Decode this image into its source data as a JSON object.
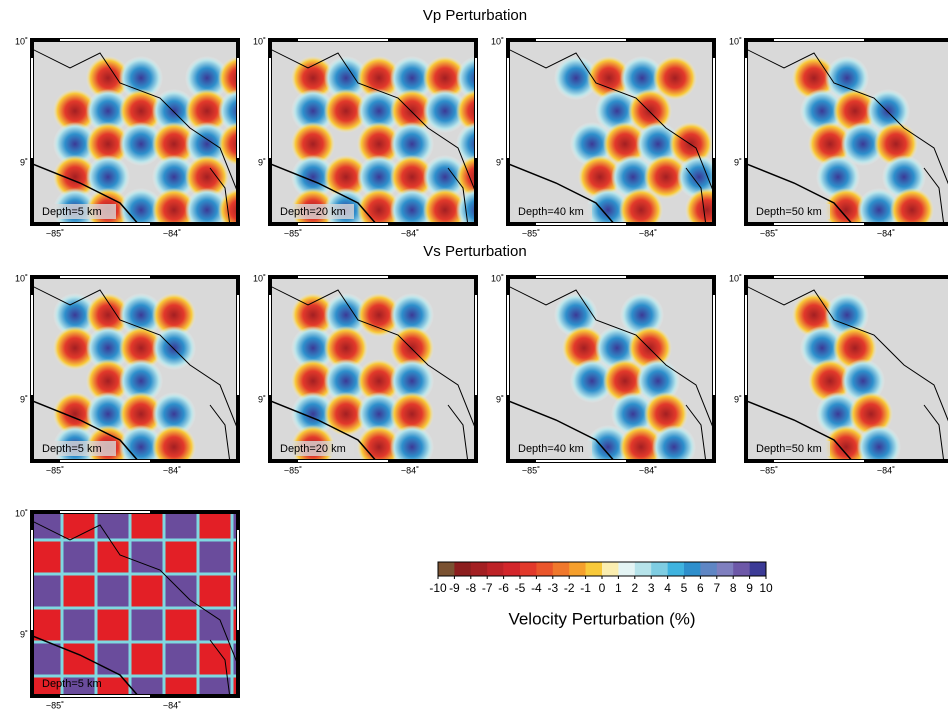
{
  "titles": {
    "vp": "Vp Perturbation",
    "vs": "Vs Perturbation"
  },
  "lat_labels": [
    "10˚",
    "9˚"
  ],
  "lon_labels": [
    "−85˚",
    "−84˚"
  ],
  "panels": [
    {
      "depth": "Depth=5 km"
    },
    {
      "depth": "Depth=20 km"
    },
    {
      "depth": "Depth=40 km"
    },
    {
      "depth": "Depth=50 km"
    },
    {
      "depth": "Depth=5 km"
    },
    {
      "depth": "Depth=20 km"
    },
    {
      "depth": "Depth=40 km"
    },
    {
      "depth": "Depth=50 km"
    },
    {
      "depth": "Depth=5 km"
    }
  ],
  "colorbar": {
    "ticks": [
      -10,
      -9,
      -8,
      -7,
      -6,
      -5,
      -4,
      -3,
      -2,
      -1,
      0,
      1,
      2,
      3,
      4,
      5,
      6,
      7,
      8,
      9,
      10
    ],
    "colors": [
      "#7a5232",
      "#8c1e1e",
      "#a31f22",
      "#bd2227",
      "#d3262b",
      "#e2392b",
      "#ea552b",
      "#f0782c",
      "#f59f2c",
      "#f8c93a",
      "#fbeeb0",
      "#e4f4f4",
      "#b6e3ea",
      "#7fcde2",
      "#3fb3df",
      "#2e8fcc",
      "#5f86c4",
      "#7f7fbf",
      "#6d58a8",
      "#3b3a96"
    ],
    "label": "Velocity Perturbation (%)"
  }
}
